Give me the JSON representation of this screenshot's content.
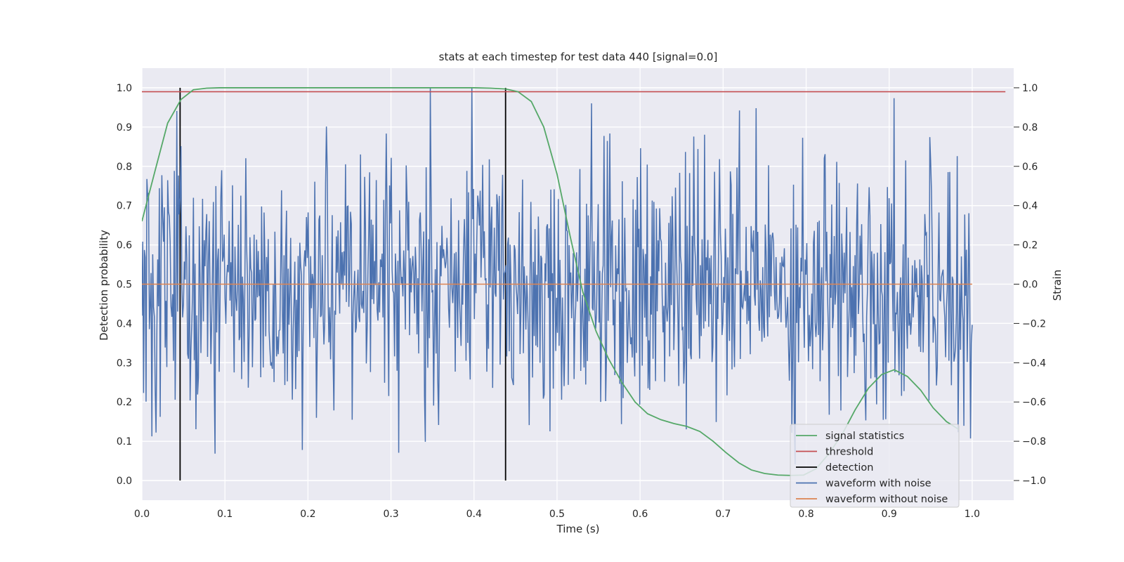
{
  "chart_data": {
    "type": "line",
    "title": "stats at each timestep for test data 440 [signal=0.0]",
    "xlabel": "Time (s)",
    "ylabel_left": "Detection probability",
    "ylabel_right": "Strain",
    "xlim": [
      0.0,
      1.05
    ],
    "ylim_left": [
      -0.05,
      1.05
    ],
    "ylim_right": [
      -1.1,
      1.1
    ],
    "x_ticks": [
      "0.0",
      "0.1",
      "0.2",
      "0.3",
      "0.4",
      "0.5",
      "0.6",
      "0.7",
      "0.8",
      "0.9",
      "1.0"
    ],
    "y_ticks_left": [
      "0.0",
      "0.1",
      "0.2",
      "0.3",
      "0.4",
      "0.5",
      "0.6",
      "0.7",
      "0.8",
      "0.9",
      "1.0"
    ],
    "y_ticks_right": [
      "−1.0",
      "−0.8",
      "−0.6",
      "−0.4",
      "−0.2",
      "0.0",
      "0.2",
      "0.4",
      "0.6",
      "0.8",
      "1.0"
    ],
    "grid": true,
    "legend_position": "lower-right",
    "series": [
      {
        "name": "signal statistics",
        "axis": "left",
        "color": "#55a868",
        "x": [
          0.0,
          0.016,
          0.031,
          0.047,
          0.062,
          0.078,
          0.094,
          0.109,
          0.2,
          0.3,
          0.4,
          0.42,
          0.438,
          0.453,
          0.469,
          0.484,
          0.5,
          0.516,
          0.531,
          0.547,
          0.562,
          0.578,
          0.594,
          0.609,
          0.625,
          0.641,
          0.656,
          0.672,
          0.688,
          0.703,
          0.719,
          0.734,
          0.75,
          0.766,
          0.781,
          0.797,
          0.812,
          0.828,
          0.844,
          0.859,
          0.875,
          0.891,
          0.906,
          0.922,
          0.938,
          0.953,
          0.969,
          0.984
        ],
        "y": [
          0.66,
          0.79,
          0.91,
          0.97,
          0.995,
          0.999,
          1.0,
          1.0,
          1.0,
          1.0,
          1.0,
          0.999,
          0.997,
          0.99,
          0.965,
          0.9,
          0.78,
          0.62,
          0.48,
          0.38,
          0.31,
          0.25,
          0.2,
          0.17,
          0.155,
          0.145,
          0.138,
          0.125,
          0.1,
          0.072,
          0.045,
          0.027,
          0.018,
          0.014,
          0.013,
          0.014,
          0.03,
          0.07,
          0.12,
          0.18,
          0.235,
          0.27,
          0.282,
          0.265,
          0.23,
          0.185,
          0.15,
          0.13
        ]
      },
      {
        "name": "threshold",
        "axis": "left",
        "color": "#c44e52",
        "x": [
          0.0,
          1.04
        ],
        "y": [
          0.99,
          0.99
        ]
      },
      {
        "name": "detection",
        "axis": "left",
        "color": "#000000",
        "x_positions": [
          0.046,
          0.438
        ],
        "y_range": [
          0.0,
          1.0
        ]
      },
      {
        "name": "waveform with noise",
        "axis": "right",
        "color": "#4c72b0",
        "generated": true,
        "x_range": [
          0.0,
          1.0
        ],
        "n_points": 1000,
        "y_range": [
          -1.0,
          1.0
        ]
      },
      {
        "name": "waveform without noise",
        "axis": "right",
        "color": "#dd8452",
        "x": [
          0.0,
          1.0
        ],
        "y": [
          0.0,
          0.0
        ]
      }
    ]
  }
}
